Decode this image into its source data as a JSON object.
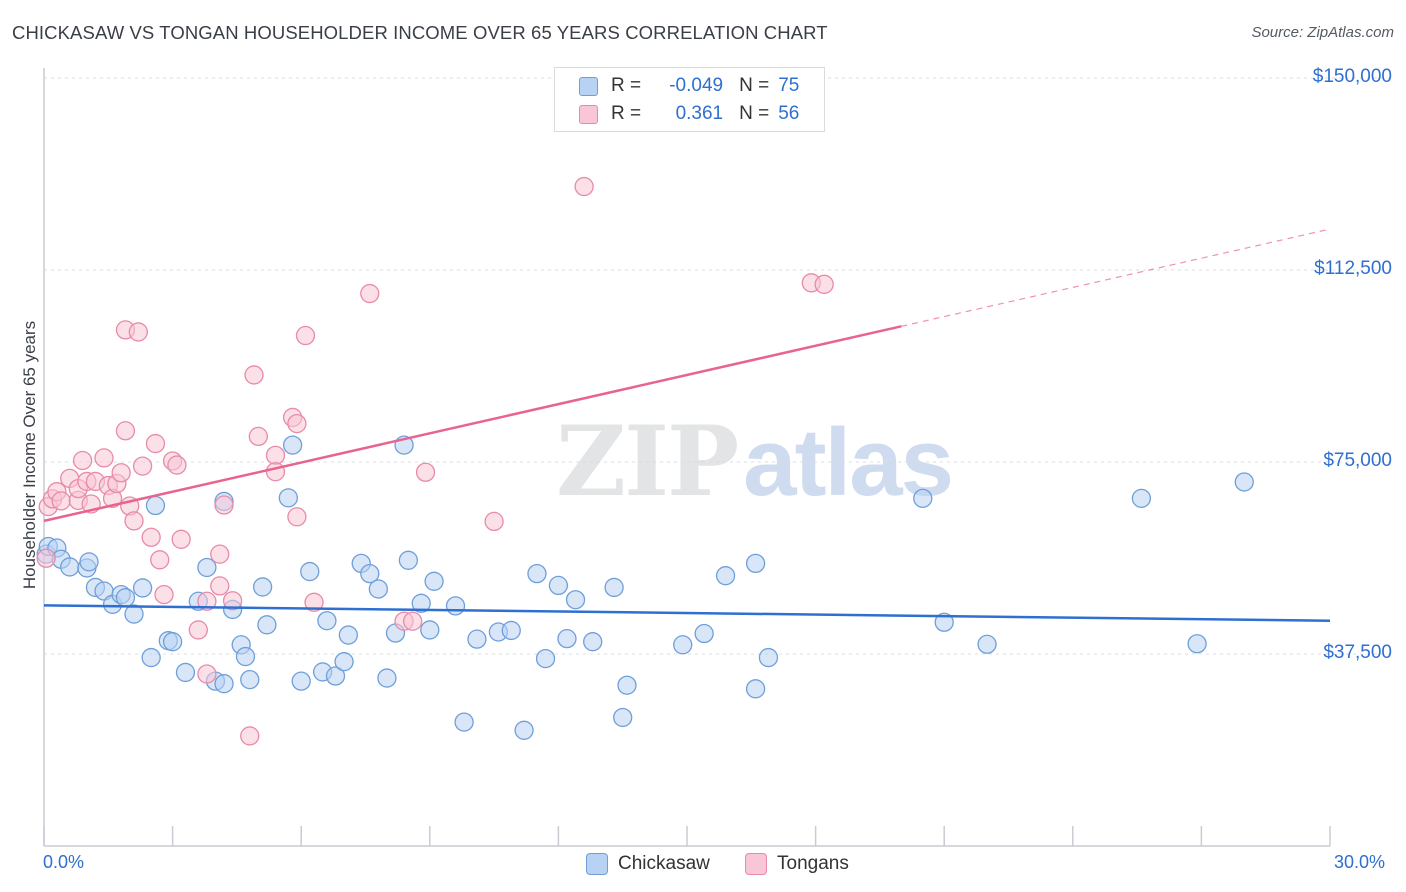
{
  "header": {
    "title": "CHICKASAW VS TONGAN HOUSEHOLDER INCOME OVER 65 YEARS CORRELATION CHART",
    "source": "Source: ZipAtlas.com"
  },
  "watermark": {
    "zip": "ZIP",
    "atlas": "atlas"
  },
  "legend": {
    "rows": [
      {
        "r_label": "R =",
        "r_value": "-0.049",
        "n_label": "N =",
        "n_value": "75",
        "fill": "#b8d2f3",
        "stroke": "#6f9fd9"
      },
      {
        "r_label": "R =",
        "r_value": "0.361",
        "n_label": "N =",
        "n_value": "56",
        "fill": "#f8c6d6",
        "stroke": "#e88aa8"
      }
    ]
  },
  "bottom_legend": [
    {
      "label": "Chickasaw",
      "fill": "#b8d2f3",
      "stroke": "#6f9fd9"
    },
    {
      "label": "Tongans",
      "fill": "#f8c6d6",
      "stroke": "#e88aa8"
    }
  ],
  "chart_data": {
    "type": "scatter",
    "title": "CHICKASAW VS TONGAN HOUSEHOLDER INCOME OVER 65 YEARS CORRELATION CHART",
    "xlabel": "",
    "ylabel": "Householder Income Over 65 years",
    "xlim": [
      0,
      30
    ],
    "ylim": [
      0,
      155000
    ],
    "x_tick_labels": {
      "min": "0.0%",
      "max": "30.0%"
    },
    "y_ticks": [
      {
        "value": 37500,
        "label": "$37,500"
      },
      {
        "value": 75000,
        "label": "$75,000"
      },
      {
        "value": 112500,
        "label": "$112,500"
      },
      {
        "value": 150000,
        "label": "$150,000"
      }
    ],
    "grid": "dashed horizontal",
    "legend_position": "top-center",
    "series": [
      {
        "name": "Chickasaw",
        "color": "#6f9fd9",
        "fill": "#b8d2f3",
        "trend_color": "#2e6fd0",
        "trend": {
          "x0": 0.0,
          "y0": 47000,
          "x1": 30.0,
          "y1": 44000
        },
        "points": [
          [
            0.05,
            57000
          ],
          [
            0.1,
            58500
          ],
          [
            0.3,
            58200
          ],
          [
            0.4,
            56000
          ],
          [
            0.6,
            54500
          ],
          [
            1.0,
            54300
          ],
          [
            1.05,
            55500
          ],
          [
            1.2,
            50500
          ],
          [
            1.4,
            49800
          ],
          [
            1.6,
            47200
          ],
          [
            1.8,
            49100
          ],
          [
            1.9,
            48500
          ],
          [
            2.1,
            45300
          ],
          [
            2.3,
            50400
          ],
          [
            2.5,
            36800
          ],
          [
            2.6,
            66500
          ],
          [
            2.9,
            40100
          ],
          [
            3.0,
            39900
          ],
          [
            3.3,
            33900
          ],
          [
            3.6,
            47800
          ],
          [
            3.8,
            54400
          ],
          [
            4.0,
            32200
          ],
          [
            4.2,
            31700
          ],
          [
            4.2,
            67300
          ],
          [
            4.4,
            46200
          ],
          [
            4.6,
            39300
          ],
          [
            4.7,
            37000
          ],
          [
            4.8,
            32500
          ],
          [
            5.1,
            50600
          ],
          [
            5.2,
            43200
          ],
          [
            5.7,
            68000
          ],
          [
            5.8,
            78300
          ],
          [
            6.0,
            32200
          ],
          [
            6.2,
            53600
          ],
          [
            6.5,
            34000
          ],
          [
            6.6,
            44000
          ],
          [
            6.8,
            33200
          ],
          [
            7.0,
            36000
          ],
          [
            7.1,
            41200
          ],
          [
            7.4,
            55200
          ],
          [
            7.6,
            53200
          ],
          [
            7.8,
            50200
          ],
          [
            8.0,
            32800
          ],
          [
            8.2,
            41600
          ],
          [
            8.4,
            78300
          ],
          [
            8.5,
            55800
          ],
          [
            8.8,
            47400
          ],
          [
            9.0,
            42200
          ],
          [
            9.1,
            51700
          ],
          [
            9.6,
            46900
          ],
          [
            9.8,
            24200
          ],
          [
            10.1,
            40400
          ],
          [
            10.6,
            41800
          ],
          [
            10.9,
            42100
          ],
          [
            11.2,
            22600
          ],
          [
            11.5,
            53200
          ],
          [
            11.7,
            36600
          ],
          [
            12.0,
            50900
          ],
          [
            12.2,
            40500
          ],
          [
            12.4,
            48100
          ],
          [
            12.8,
            39900
          ],
          [
            13.3,
            50500
          ],
          [
            13.6,
            31400
          ],
          [
            13.5,
            25100
          ],
          [
            14.9,
            39300
          ],
          [
            15.4,
            41500
          ],
          [
            15.9,
            52800
          ],
          [
            16.6,
            55200
          ],
          [
            16.6,
            30700
          ],
          [
            16.9,
            36800
          ],
          [
            20.5,
            67900
          ],
          [
            21.0,
            43700
          ],
          [
            22.0,
            39400
          ],
          [
            25.6,
            67900
          ],
          [
            26.9,
            39500
          ],
          [
            28.0,
            71100
          ]
        ]
      },
      {
        "name": "Tongans",
        "color": "#e88aa8",
        "fill": "#f8c6d6",
        "trend_color": "#e8648e",
        "trend": {
          "x0": 0.0,
          "y0": 63500,
          "x1": 20.0,
          "y1": 101500
        },
        "trend_dashed_to": {
          "x": 30.0,
          "y": 120500
        },
        "points": [
          [
            0.05,
            56200
          ],
          [
            0.1,
            66300
          ],
          [
            0.2,
            67800
          ],
          [
            0.3,
            69200
          ],
          [
            0.4,
            67400
          ],
          [
            0.6,
            71800
          ],
          [
            0.8,
            67500
          ],
          [
            0.8,
            69800
          ],
          [
            0.9,
            75300
          ],
          [
            1.0,
            71200
          ],
          [
            1.1,
            66800
          ],
          [
            1.2,
            71200
          ],
          [
            1.4,
            75800
          ],
          [
            1.5,
            70400
          ],
          [
            1.6,
            67900
          ],
          [
            1.7,
            70800
          ],
          [
            1.8,
            72900
          ],
          [
            1.9,
            81100
          ],
          [
            1.9,
            100800
          ],
          [
            2.0,
            66400
          ],
          [
            2.1,
            63500
          ],
          [
            2.2,
            100400
          ],
          [
            2.3,
            74200
          ],
          [
            2.5,
            60300
          ],
          [
            2.6,
            78600
          ],
          [
            2.7,
            55900
          ],
          [
            2.8,
            49100
          ],
          [
            3.0,
            75200
          ],
          [
            3.1,
            74400
          ],
          [
            3.2,
            59900
          ],
          [
            3.6,
            42200
          ],
          [
            3.8,
            33600
          ],
          [
            3.8,
            47800
          ],
          [
            4.1,
            57000
          ],
          [
            4.1,
            50800
          ],
          [
            4.2,
            66600
          ],
          [
            4.4,
            47900
          ],
          [
            4.8,
            21500
          ],
          [
            4.9,
            92000
          ],
          [
            5.0,
            80000
          ],
          [
            5.4,
            76300
          ],
          [
            5.4,
            73100
          ],
          [
            5.8,
            83700
          ],
          [
            5.9,
            82500
          ],
          [
            5.9,
            64300
          ],
          [
            6.1,
            99700
          ],
          [
            6.3,
            47600
          ],
          [
            7.6,
            107900
          ],
          [
            8.4,
            43900
          ],
          [
            8.6,
            43900
          ],
          [
            8.9,
            73000
          ],
          [
            10.5,
            63400
          ],
          [
            12.6,
            128800
          ],
          [
            17.9,
            110000
          ],
          [
            18.2,
            109700
          ]
        ]
      }
    ]
  }
}
